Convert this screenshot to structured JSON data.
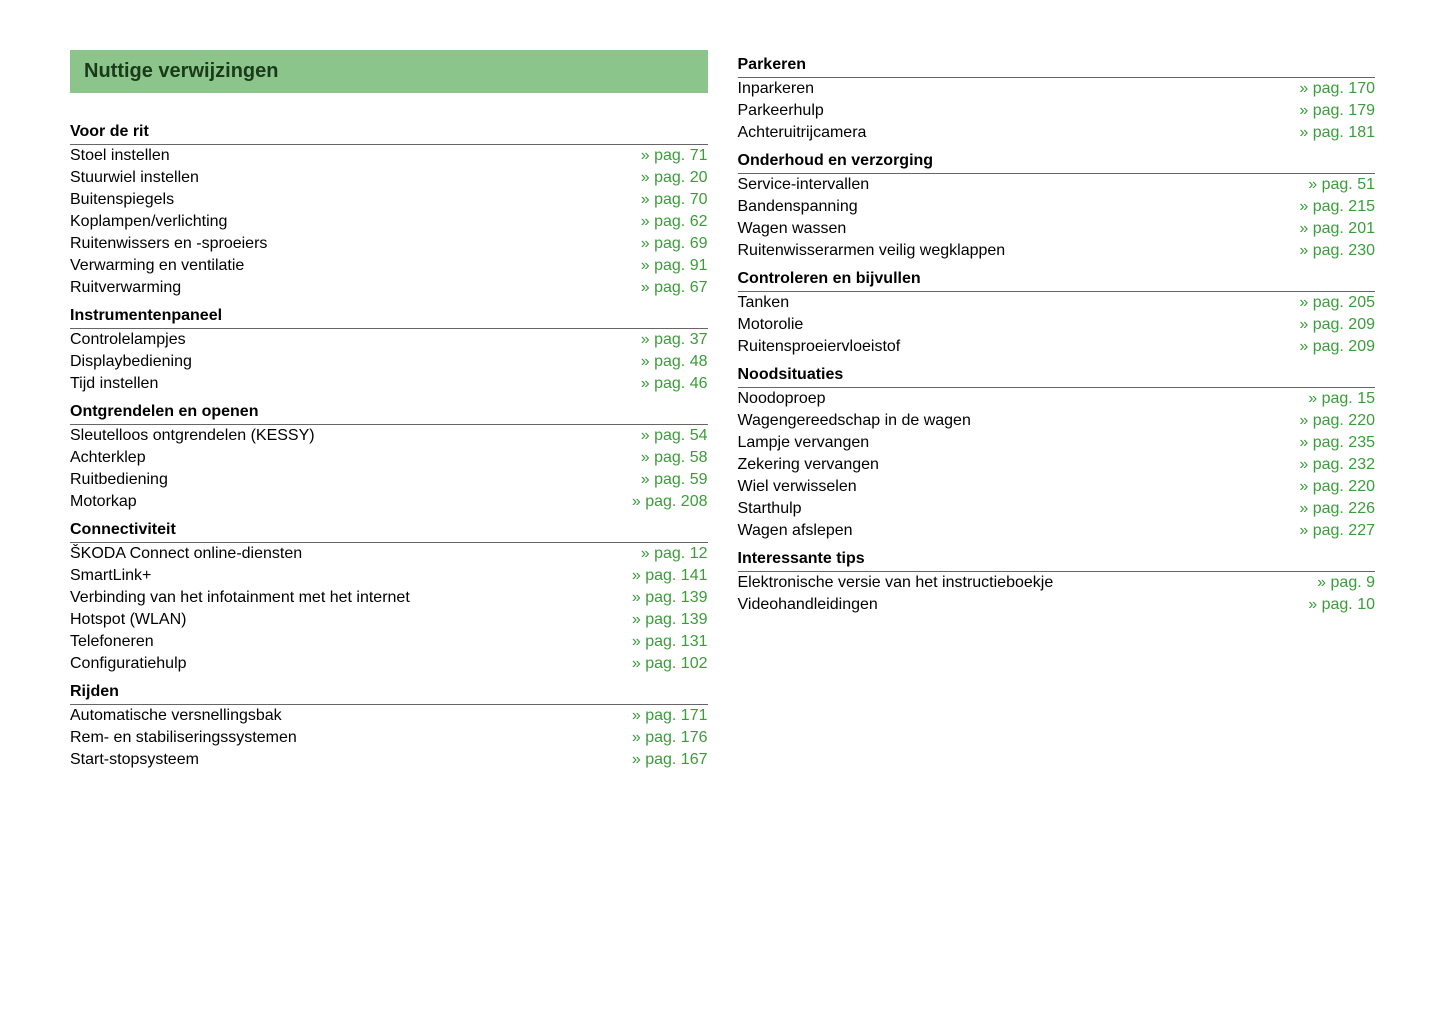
{
  "title": "Nuttige verwijzingen",
  "colors": {
    "header_bg": "#8bc58b",
    "header_text": "#1a3a1a",
    "link": "#3a9d3a",
    "text": "#000000"
  },
  "left": [
    {
      "header": "Voor de rit",
      "rows": [
        {
          "label": "Stoel instellen",
          "page": "» pag. 71"
        },
        {
          "label": "Stuurwiel instellen",
          "page": "» pag. 20"
        },
        {
          "label": "Buitenspiegels",
          "page": "» pag. 70"
        },
        {
          "label": "Koplampen/verlichting",
          "page": "» pag. 62"
        },
        {
          "label": "Ruitenwissers en -sproeiers",
          "page": "» pag. 69"
        },
        {
          "label": "Verwarming en ventilatie",
          "page": "» pag. 91"
        },
        {
          "label": "Ruitverwarming",
          "page": "» pag. 67"
        }
      ]
    },
    {
      "header": "Instrumentenpaneel",
      "rows": [
        {
          "label": "Controlelampjes",
          "page": "» pag. 37"
        },
        {
          "label": "Displaybediening",
          "page": "» pag. 48"
        },
        {
          "label": "Tijd instellen",
          "page": "» pag. 46"
        }
      ]
    },
    {
      "header": "Ontgrendelen en openen",
      "rows": [
        {
          "label": "Sleutelloos ontgrendelen (KESSY)",
          "page": "» pag. 54"
        },
        {
          "label": "Achterklep",
          "page": "» pag. 58"
        },
        {
          "label": "Ruitbediening",
          "page": "» pag. 59"
        },
        {
          "label": "Motorkap",
          "page": "» pag. 208"
        }
      ]
    },
    {
      "header": "Connectiviteit",
      "rows": [
        {
          "label": "ŠKODA Connect online-diensten",
          "page": "» pag. 12"
        },
        {
          "label": "SmartLink+",
          "page": "» pag. 141"
        },
        {
          "label": "Verbinding van het infotainment met het internet",
          "page": "» pag. 139"
        },
        {
          "label": "Hotspot (WLAN)",
          "page": "» pag. 139"
        },
        {
          "label": "Telefoneren",
          "page": "» pag. 131"
        },
        {
          "label": "Configuratiehulp",
          "page": "» pag. 102"
        }
      ]
    },
    {
      "header": "Rijden",
      "rows": [
        {
          "label": "Automatische versnellingsbak",
          "page": "» pag. 171"
        },
        {
          "label": "Rem- en stabiliseringssystemen",
          "page": "» pag. 176"
        },
        {
          "label": "Start-stopsysteem",
          "page": "» pag. 167"
        }
      ]
    }
  ],
  "right": [
    {
      "header": "Parkeren",
      "rows": [
        {
          "label": "Inparkeren",
          "page": "» pag. 170"
        },
        {
          "label": "Parkeerhulp",
          "page": "» pag. 179"
        },
        {
          "label": "Achteruitrijcamera",
          "page": "» pag. 181"
        }
      ]
    },
    {
      "header": "Onderhoud en verzorging",
      "rows": [
        {
          "label": "Service-intervallen",
          "page": "» pag. 51"
        },
        {
          "label": "Bandenspanning",
          "page": "» pag. 215"
        },
        {
          "label": "Wagen wassen",
          "page": "» pag. 201"
        },
        {
          "label": "Ruitenwisserarmen veilig wegklappen",
          "page": "» pag. 230"
        }
      ]
    },
    {
      "header": "Controleren en bijvullen",
      "rows": [
        {
          "label": "Tanken",
          "page": "» pag. 205"
        },
        {
          "label": "Motorolie",
          "page": "» pag. 209"
        },
        {
          "label": "Ruitensproeiervloeistof",
          "page": "» pag. 209"
        }
      ]
    },
    {
      "header": "Noodsituaties",
      "rows": [
        {
          "label": "Noodoproep",
          "page": "» pag. 15"
        },
        {
          "label": "Wagengereedschap in de wagen",
          "page": "» pag. 220"
        },
        {
          "label": "Lampje vervangen",
          "page": "» pag. 235"
        },
        {
          "label": "Zekering vervangen",
          "page": "» pag. 232"
        },
        {
          "label": "Wiel verwisselen",
          "page": "» pag. 220"
        },
        {
          "label": "Starthulp",
          "page": "» pag. 226"
        },
        {
          "label": "Wagen afslepen",
          "page": "» pag. 227"
        }
      ]
    },
    {
      "header": "Interessante tips",
      "rows": [
        {
          "label": "Elektronische versie van het instructieboekje",
          "page": "» pag. 9"
        },
        {
          "label": "Videohandleidingen",
          "page": "» pag. 10"
        }
      ]
    }
  ]
}
